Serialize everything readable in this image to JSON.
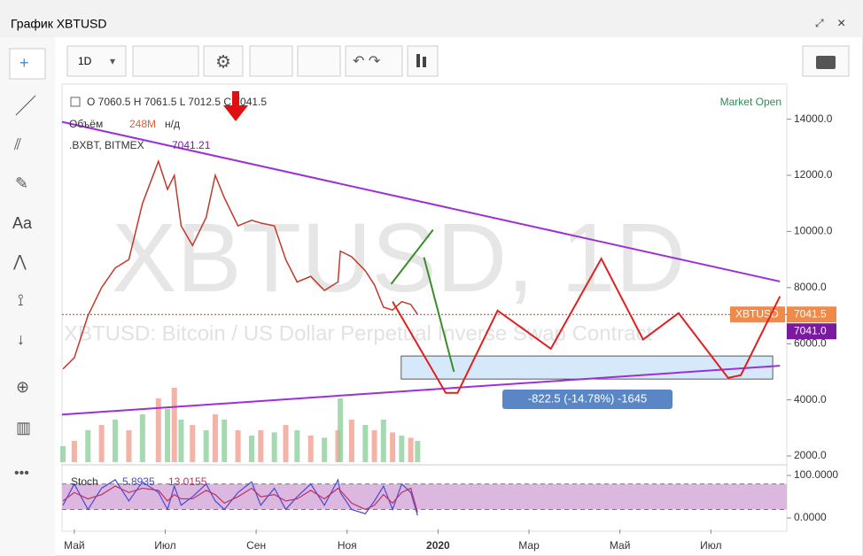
{
  "window": {
    "title": "График XBTUSD"
  },
  "toolbar": {
    "interval": "1D"
  },
  "left_tools": {
    "text_tool": "Aa",
    "more": "•••"
  },
  "chart_data": {
    "type": "line",
    "ohlc": "O 7060.5 H 7061.5 L 7012.5 C 7041.5",
    "volume_label": "Объём",
    "volume_value": "248M",
    "volume_na": "н/д",
    "index_label": ".BXBT, BITMEX",
    "index_value": "7041.21",
    "market_status": "Market Open",
    "watermark": "XBTUSD, 1D",
    "description": "XBTUSD: Bitcoin / US Dollar Perpetual Inverse Swap Contract",
    "symbol_tag": "XBTUSD",
    "last_price": {
      "value": 7041.5,
      "label": "7041.5"
    },
    "bid_price": {
      "value": 7041.0,
      "label": "7041.0"
    },
    "series": [
      {
        "name": "XBTUSD",
        "color": "#c0392b",
        "x": [
          4.75,
          5.0,
          5.3,
          5.6,
          5.9,
          6.2,
          6.5,
          6.85,
          7.05,
          7.2,
          7.35,
          7.6,
          7.9,
          8.1,
          8.3,
          8.6,
          8.9,
          9.1,
          9.4,
          9.65,
          9.9,
          10.2,
          10.5,
          10.8,
          10.85,
          11.1,
          11.4,
          11.6,
          11.8,
          12.0,
          12.2,
          12.4,
          12.55
        ],
        "values": [
          5100,
          5500,
          7000,
          8000,
          8700,
          9000,
          11000,
          12500,
          11500,
          12000,
          10200,
          9500,
          10500,
          12000,
          11200,
          10200,
          10400,
          10300,
          10200,
          9000,
          8200,
          8400,
          7900,
          8200,
          9300,
          9100,
          8600,
          8100,
          7300,
          7200,
          7500,
          7400,
          7041.5
        ],
        "volume": [
          150,
          200,
          300,
          350,
          400,
          300,
          450,
          600,
          500,
          700,
          400,
          350,
          300,
          450,
          400,
          300,
          250,
          300,
          280,
          350,
          300,
          250,
          230,
          300,
          600,
          400,
          350,
          300,
          400,
          280,
          250,
          230,
          200
        ]
      }
    ],
    "xlim": [
      4.73,
      20.67
    ],
    "xticks": [
      {
        "value": 5,
        "label": "Май"
      },
      {
        "value": 7,
        "label": "Июл"
      },
      {
        "value": 9,
        "label": "Сен"
      },
      {
        "value": 11,
        "label": "Ноя"
      },
      {
        "value": 13,
        "label": "2020"
      },
      {
        "value": 15,
        "label": "Мар"
      },
      {
        "value": 17,
        "label": "Май"
      },
      {
        "value": 19,
        "label": "Июл"
      }
    ],
    "ylim": [
      1780,
      15250
    ],
    "yticks": [
      {
        "value": 2000,
        "label": "2000.0"
      },
      {
        "value": 4000,
        "label": "4000.0"
      },
      {
        "value": 6000,
        "label": "6000.0"
      },
      {
        "value": 8000,
        "label": "8000.0"
      },
      {
        "value": 10000,
        "label": "10000.0"
      },
      {
        "value": 12000,
        "label": "12000.0"
      },
      {
        "value": 14000,
        "label": "14000.0"
      }
    ],
    "stoch": {
      "name": "Stoch",
      "k_label": "5.8935",
      "d_label": "13.0155",
      "k": [
        30,
        80,
        20,
        70,
        90,
        40,
        85,
        60,
        20,
        75,
        30,
        50,
        80,
        40,
        20,
        60,
        85,
        30,
        70,
        20,
        50,
        80,
        30,
        90,
        60,
        20,
        10,
        40,
        75,
        20,
        80,
        60,
        5.8935
      ],
      "d": [
        40,
        60,
        45,
        55,
        75,
        60,
        70,
        65,
        40,
        55,
        45,
        45,
        65,
        55,
        35,
        50,
        70,
        50,
        55,
        40,
        45,
        65,
        45,
        70,
        65,
        35,
        20,
        30,
        55,
        35,
        60,
        70,
        13.0155
      ],
      "ylim": [
        -27,
        121
      ],
      "bands": [
        20,
        80
      ],
      "yticks": [
        {
          "value": 0,
          "label": "0.0000"
        },
        {
          "value": 100,
          "label": "100.0000"
        }
      ]
    },
    "annotations": {
      "trendlines": [
        {
          "x": [
            4.73,
            20.52
          ],
          "y": [
            13905,
            8217
          ],
          "color": "#9b30d9"
        },
        {
          "x": [
            4.73,
            20.52
          ],
          "y": [
            3477,
            5215
          ],
          "color": "#9b30d9"
        }
      ],
      "zigzag": {
        "color": "#e02020",
        "x": [
          12.0,
          13.17,
          13.43,
          14.31,
          15.48,
          16.59,
          17.51,
          18.29,
          19.38,
          19.66,
          20.52
        ],
        "y": [
          7500,
          4250,
          4250,
          7180,
          5820,
          9030,
          6150,
          7090,
          4780,
          4880,
          7690
        ]
      },
      "arrows": [
        {
          "x": [
            11.97,
            12.89
          ],
          "y": [
            8130,
            10060
          ]
        },
        {
          "x": [
            12.69,
            13.35
          ],
          "y": [
            9080,
            5000
          ]
        }
      ],
      "range": {
        "x": [
          12.19,
          20.36
        ],
        "y": [
          5563,
          4741
        ],
        "label": "-822.5 (-14.78%) -1645"
      }
    }
  }
}
